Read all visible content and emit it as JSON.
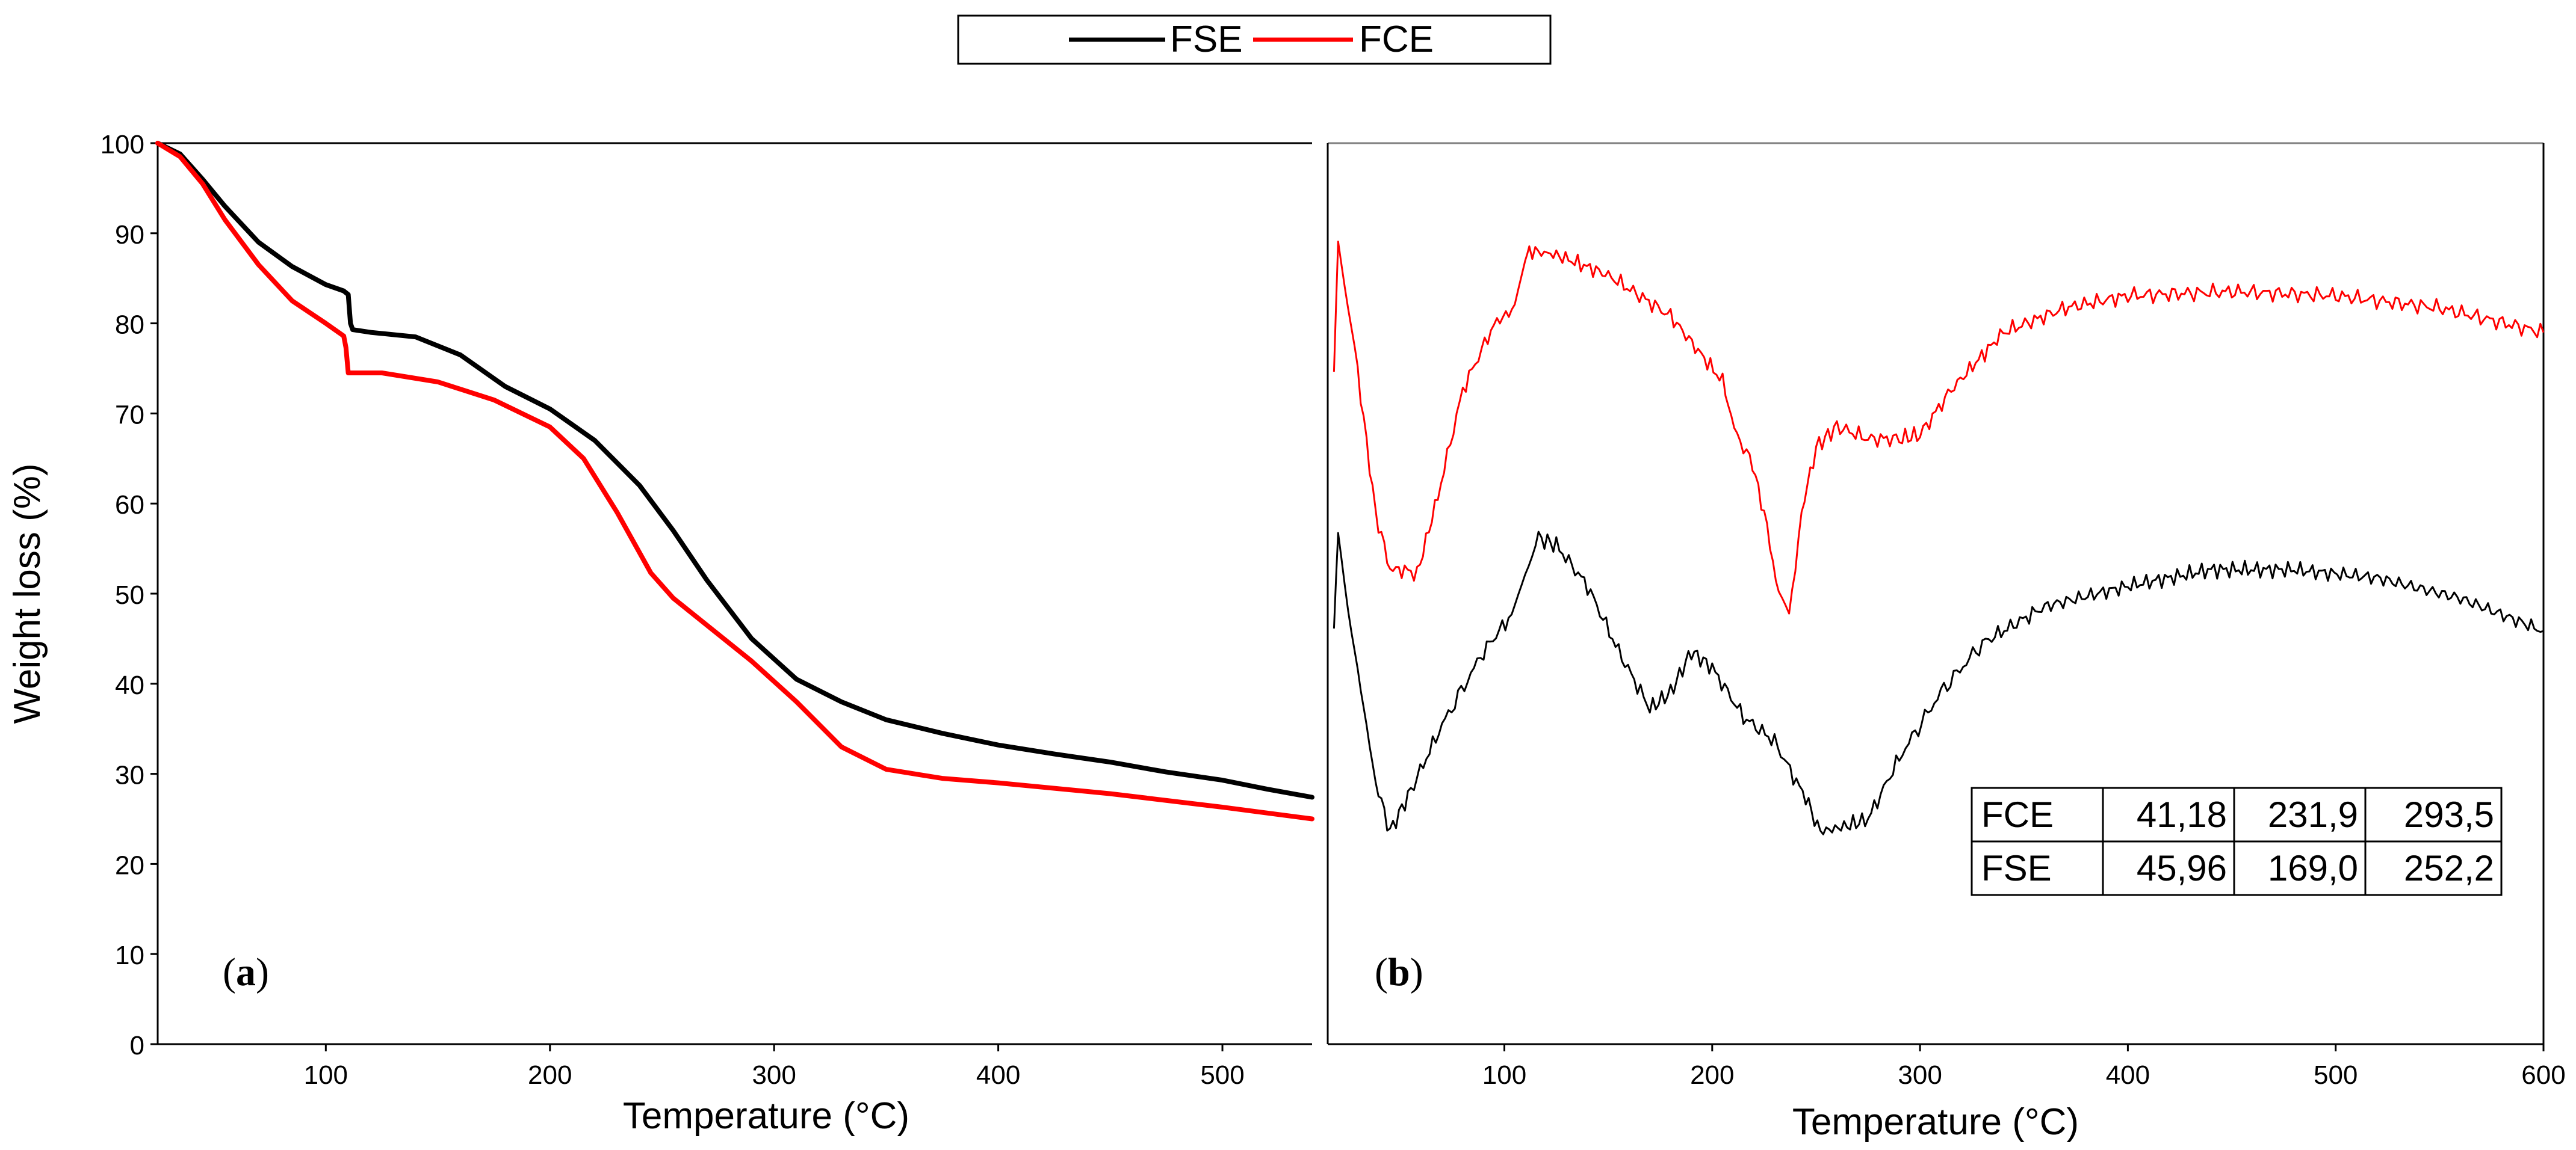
{
  "chart_data": [
    {
      "panel": "a",
      "type": "line",
      "title": "",
      "xlabel": "Temperature (°C)",
      "ylabel": "Weight loss (%)",
      "xlim": [
        25,
        540
      ],
      "ylim": [
        0,
        100
      ],
      "x_ticks": [
        100,
        200,
        300,
        400,
        500
      ],
      "y_ticks": [
        0,
        10,
        20,
        30,
        40,
        50,
        60,
        70,
        80,
        90,
        100
      ],
      "grid": false,
      "panel_label": "a",
      "series": [
        {
          "name": "FSE",
          "color": "#000000",
          "points": [
            [
              25,
              100
            ],
            [
              35,
              98.8
            ],
            [
              45,
              96
            ],
            [
              55,
              93
            ],
            [
              70,
              89
            ],
            [
              85,
              86.3
            ],
            [
              100,
              84.3
            ],
            [
              108,
              83.6
            ],
            [
              110,
              83.2
            ],
            [
              111,
              80
            ],
            [
              112,
              79.3
            ],
            [
              120,
              79
            ],
            [
              140,
              78.5
            ],
            [
              160,
              76.5
            ],
            [
              180,
              73
            ],
            [
              200,
              70.5
            ],
            [
              220,
              67
            ],
            [
              240,
              62
            ],
            [
              255,
              57
            ],
            [
              270,
              51.5
            ],
            [
              290,
              45
            ],
            [
              310,
              40.5
            ],
            [
              330,
              38
            ],
            [
              350,
              36
            ],
            [
              375,
              34.5
            ],
            [
              400,
              33.2
            ],
            [
              425,
              32.2
            ],
            [
              450,
              31.3
            ],
            [
              475,
              30.2
            ],
            [
              500,
              29.3
            ],
            [
              520,
              28.3
            ],
            [
              540,
              27.4
            ]
          ]
        },
        {
          "name": "FCE",
          "color": "#ff0000",
          "points": [
            [
              25,
              100
            ],
            [
              35,
              98.5
            ],
            [
              45,
              95.5
            ],
            [
              55,
              91.5
            ],
            [
              70,
              86.5
            ],
            [
              85,
              82.5
            ],
            [
              100,
              80
            ],
            [
              108,
              78.6
            ],
            [
              109,
              77.3
            ],
            [
              110,
              74.5
            ],
            [
              125,
              74.5
            ],
            [
              150,
              73.5
            ],
            [
              175,
              71.5
            ],
            [
              200,
              68.5
            ],
            [
              215,
              65
            ],
            [
              230,
              59
            ],
            [
              245,
              52.3
            ],
            [
              255,
              49.5
            ],
            [
              270,
              46.5
            ],
            [
              290,
              42.5
            ],
            [
              310,
              38
            ],
            [
              330,
              33
            ],
            [
              350,
              30.5
            ],
            [
              375,
              29.5
            ],
            [
              400,
              29
            ],
            [
              450,
              27.8
            ],
            [
              500,
              26.3
            ],
            [
              540,
              25
            ]
          ]
        }
      ]
    },
    {
      "panel": "b",
      "type": "line",
      "title": "",
      "xlabel": "Temperature (°C)",
      "ylabel": "",
      "xlim": [
        15,
        600
      ],
      "x_ticks": [
        100,
        200,
        300,
        400,
        500,
        600
      ],
      "y_axis_visible": false,
      "y_units": "relative signal (arbitrary, 0-100 scale)",
      "grid": false,
      "panel_label": "b",
      "series": [
        {
          "name": "FCE",
          "color": "#ff0000",
          "points": [
            [
              18,
              73
            ],
            [
              20,
              88
            ],
            [
              28,
              75
            ],
            [
              38,
              55
            ],
            [
              45,
              48
            ],
            [
              52,
              48
            ],
            [
              58,
              47.5
            ],
            [
              68,
              57
            ],
            [
              80,
              70
            ],
            [
              95,
              78
            ],
            [
              105,
              80
            ],
            [
              110,
              86
            ],
            [
              112,
              87
            ],
            [
              125,
              86.5
            ],
            [
              150,
              84
            ],
            [
              180,
              79
            ],
            [
              205,
              71
            ],
            [
              212,
              64
            ],
            [
              218,
              62
            ],
            [
              225,
              55
            ],
            [
              232,
              45
            ],
            [
              237,
              42
            ],
            [
              243,
              55
            ],
            [
              250,
              63
            ],
            [
              260,
              65.5
            ],
            [
              275,
              64
            ],
            [
              290,
              64
            ],
            [
              300,
              64.5
            ],
            [
              315,
              70
            ],
            [
              340,
              77
            ],
            [
              370,
              80
            ],
            [
              400,
              81.5
            ],
            [
              450,
              82
            ],
            [
              500,
              81.5
            ],
            [
              550,
              80
            ],
            [
              600,
              77
            ]
          ]
        },
        {
          "name": "FSE",
          "color": "#000000",
          "points": [
            [
              18,
              41
            ],
            [
              20,
              52
            ],
            [
              28,
              38
            ],
            [
              38,
              22
            ],
            [
              45,
              16
            ],
            [
              55,
              21
            ],
            [
              70,
              29
            ],
            [
              90,
              38
            ],
            [
              105,
              43
            ],
            [
              110,
              48
            ],
            [
              115,
              52
            ],
            [
              125,
              51
            ],
            [
              140,
              46
            ],
            [
              155,
              38
            ],
            [
              170,
              31
            ],
            [
              180,
              33
            ],
            [
              190,
              38
            ],
            [
              200,
              36
            ],
            [
              215,
              30
            ],
            [
              230,
              27
            ],
            [
              245,
              20
            ],
            [
              252,
              16
            ],
            [
              262,
              16.5
            ],
            [
              275,
              17.5
            ],
            [
              290,
              25
            ],
            [
              310,
              33
            ],
            [
              330,
              39
            ],
            [
              360,
              43.5
            ],
            [
              400,
              46
            ],
            [
              440,
              48
            ],
            [
              480,
              48
            ],
            [
              520,
              47
            ],
            [
              560,
              44.5
            ],
            [
              600,
              40.5
            ]
          ]
        }
      ],
      "table": {
        "rows": [
          [
            "FCE",
            "41,18",
            "231,9",
            "293,5"
          ],
          [
            "FSE",
            "45,96",
            "169,0",
            "252,2"
          ]
        ]
      }
    }
  ],
  "legend": {
    "placement": "top-center",
    "entries": [
      {
        "label": "FSE",
        "color": "#000000"
      },
      {
        "label": "FCE",
        "color": "#ff0000"
      }
    ]
  }
}
